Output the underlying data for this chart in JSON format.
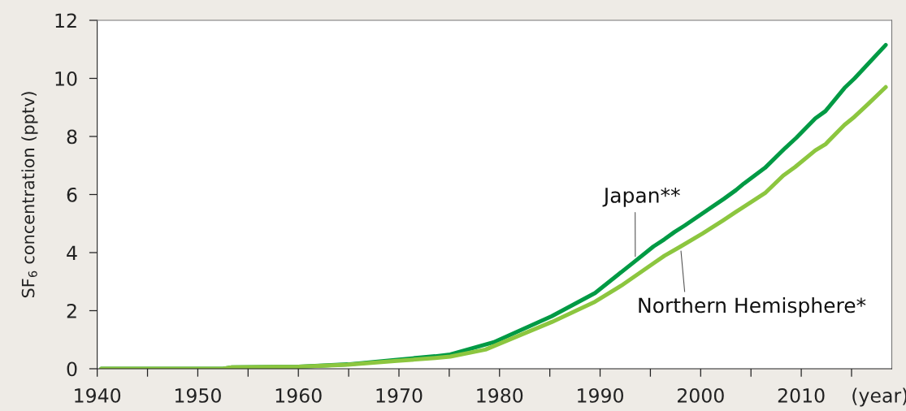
{
  "chart_data": {
    "type": "line",
    "ylabel": "SF$_{6}$ concentration (pptv)",
    "xlabel": "(year)",
    "xlim": [
      1940,
      2019
    ],
    "ylim": [
      0,
      12
    ],
    "xticks": [
      1940,
      {
        "value": 1945,
        "label": null
      },
      1950,
      {
        "value": 1955,
        "label": null
      },
      1960,
      {
        "value": 1965,
        "label": null
      },
      1970,
      {
        "value": 1975,
        "label": null
      },
      1980,
      {
        "value": 1985,
        "label": null
      },
      1990,
      {
        "value": 1995,
        "label": null
      },
      2000,
      {
        "value": 2005,
        "label": null
      },
      2010,
      {
        "value": 2015,
        "label": null
      }
    ],
    "yticks": [
      0,
      2,
      4,
      6,
      8,
      10,
      12
    ],
    "grid": false,
    "legend": false,
    "marker": "none",
    "line_style": "solid",
    "series": [
      {
        "name": "Japan**",
        "color": "#009a44",
        "x": [
          1940.4,
          1952.5,
          1953.4,
          1960,
          1964.9,
          1969.8,
          1973.6,
          1975.1,
          1979.4,
          1985.2,
          1989.5,
          1993.5,
          1995.3,
          1996.4,
          1997.4,
          1998.4,
          2002.3,
          2003.5,
          2004.3,
          2006.4,
          2008.4,
          2009.5,
          2011.4,
          2012.4,
          2014.3,
          2015.3,
          2016.6,
          2018.4
        ],
        "values": [
          0,
          0,
          0.05,
          0.07,
          0.15,
          0.31,
          0.43,
          0.49,
          0.91,
          1.81,
          2.61,
          3.71,
          4.21,
          4.46,
          4.71,
          4.93,
          5.85,
          6.15,
          6.38,
          6.92,
          7.6,
          7.95,
          8.62,
          8.87,
          9.67,
          10.0,
          10.48,
          11.15
        ]
      },
      {
        "name": "Northern Hemisphere*",
        "color": "#8cc63f",
        "x": [
          1940.4,
          1952.5,
          1953.4,
          1960,
          1964.9,
          1969.8,
          1973.6,
          1975.1,
          1978.6,
          1985.2,
          1989.5,
          1992.1,
          1995.3,
          1996.4,
          1998.0,
          2000.2,
          2002.2,
          2003.5,
          2006.4,
          2008.2,
          2009.4,
          2011.4,
          2012.4,
          2014.3,
          2015.3,
          2016.6,
          2018.4
        ],
        "values": [
          0,
          0,
          0.05,
          0.07,
          0.14,
          0.27,
          0.37,
          0.42,
          0.66,
          1.61,
          2.31,
          2.86,
          3.63,
          3.89,
          4.21,
          4.66,
          5.1,
          5.4,
          6.05,
          6.65,
          6.95,
          7.52,
          7.73,
          8.4,
          8.68,
          9.1,
          9.7
        ]
      }
    ]
  }
}
